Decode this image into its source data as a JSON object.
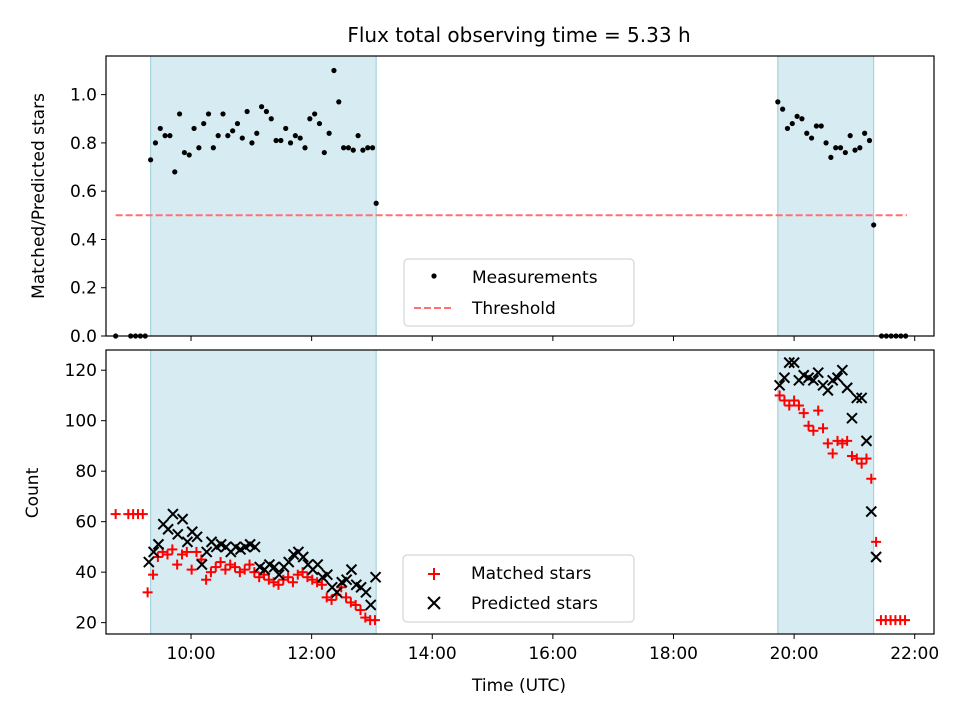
{
  "chart_data": [
    {
      "type": "scatter",
      "title": "Flux total observing time = 5.33 h",
      "ylabel": "Matched/Predicted stars",
      "xlim": [
        8.59,
        22.32
      ],
      "ylim": [
        0.0,
        1.16
      ],
      "ytick_labels": [
        "0.0",
        "0.2",
        "0.4",
        "0.6",
        "0.8",
        "1.0"
      ],
      "ytick_values": [
        0.0,
        0.2,
        0.4,
        0.6,
        0.8,
        1.0
      ],
      "shaded_intervals": [
        [
          9.33,
          13.07
        ],
        [
          19.73,
          21.32
        ]
      ],
      "threshold": {
        "name": "Threshold",
        "value": 0.5,
        "x_range": [
          8.75,
          21.87
        ],
        "color": "#ff7070"
      },
      "legend": {
        "placement": "lower center",
        "entries": [
          "Measurements",
          "Threshold"
        ]
      },
      "series": [
        {
          "name": "Measurements",
          "color": "#000000",
          "marker": "dot",
          "points": [
            [
              8.75,
              0.0
            ],
            [
              9.0,
              0.0
            ],
            [
              9.08,
              0.0
            ],
            [
              9.16,
              0.0
            ],
            [
              9.24,
              0.0
            ],
            [
              9.33,
              0.73
            ],
            [
              9.41,
              0.8
            ],
            [
              9.49,
              0.86
            ],
            [
              9.57,
              0.83
            ],
            [
              9.65,
              0.83
            ],
            [
              9.73,
              0.68
            ],
            [
              9.81,
              0.92
            ],
            [
              9.89,
              0.76
            ],
            [
              9.97,
              0.75
            ],
            [
              10.05,
              0.86
            ],
            [
              10.13,
              0.78
            ],
            [
              10.21,
              0.88
            ],
            [
              10.29,
              0.92
            ],
            [
              10.37,
              0.78
            ],
            [
              10.45,
              0.83
            ],
            [
              10.53,
              0.92
            ],
            [
              10.61,
              0.83
            ],
            [
              10.69,
              0.85
            ],
            [
              10.77,
              0.88
            ],
            [
              10.85,
              0.82
            ],
            [
              10.93,
              0.93
            ],
            [
              11.01,
              0.8
            ],
            [
              11.09,
              0.84
            ],
            [
              11.17,
              0.95
            ],
            [
              11.25,
              0.93
            ],
            [
              11.33,
              0.9
            ],
            [
              11.41,
              0.81
            ],
            [
              11.49,
              0.81
            ],
            [
              11.57,
              0.86
            ],
            [
              11.65,
              0.8
            ],
            [
              11.73,
              0.83
            ],
            [
              11.81,
              0.82
            ],
            [
              11.89,
              0.78
            ],
            [
              11.97,
              0.9
            ],
            [
              12.05,
              0.92
            ],
            [
              12.13,
              0.88
            ],
            [
              12.21,
              0.76
            ],
            [
              12.29,
              0.84
            ],
            [
              12.37,
              1.1
            ],
            [
              12.45,
              0.97
            ],
            [
              12.53,
              0.78
            ],
            [
              12.61,
              0.78
            ],
            [
              12.69,
              0.77
            ],
            [
              12.77,
              0.83
            ],
            [
              12.85,
              0.77
            ],
            [
              12.93,
              0.78
            ],
            [
              13.01,
              0.78
            ],
            [
              13.07,
              0.55
            ],
            [
              19.73,
              0.97
            ],
            [
              19.81,
              0.94
            ],
            [
              19.89,
              0.86
            ],
            [
              19.97,
              0.88
            ],
            [
              20.05,
              0.91
            ],
            [
              20.13,
              0.9
            ],
            [
              20.21,
              0.84
            ],
            [
              20.29,
              0.82
            ],
            [
              20.37,
              0.87
            ],
            [
              20.45,
              0.87
            ],
            [
              20.53,
              0.8
            ],
            [
              20.61,
              0.74
            ],
            [
              20.69,
              0.78
            ],
            [
              20.77,
              0.78
            ],
            [
              20.85,
              0.76
            ],
            [
              20.93,
              0.83
            ],
            [
              21.01,
              0.77
            ],
            [
              21.09,
              0.78
            ],
            [
              21.17,
              0.84
            ],
            [
              21.25,
              0.81
            ],
            [
              21.32,
              0.46
            ],
            [
              21.45,
              0.0
            ],
            [
              21.53,
              0.0
            ],
            [
              21.61,
              0.0
            ],
            [
              21.69,
              0.0
            ],
            [
              21.77,
              0.0
            ],
            [
              21.85,
              0.0
            ]
          ]
        }
      ]
    },
    {
      "type": "scatter",
      "xlabel": "Time (UTC)",
      "ylabel": "Count",
      "xlim": [
        8.59,
        22.32
      ],
      "ylim": [
        15.5,
        128
      ],
      "xtick_labels": [
        "10:00",
        "12:00",
        "14:00",
        "16:00",
        "18:00",
        "20:00",
        "22:00"
      ],
      "xtick_values": [
        10,
        12,
        14,
        16,
        18,
        20,
        22
      ],
      "ytick_labels": [
        "20",
        "40",
        "60",
        "80",
        "100",
        "120"
      ],
      "ytick_values": [
        20,
        40,
        60,
        80,
        100,
        120
      ],
      "shaded_intervals": [
        [
          9.33,
          13.07
        ],
        [
          19.73,
          21.32
        ]
      ],
      "legend": {
        "placement": "lower center",
        "entries": [
          "Matched stars",
          "Predicted stars"
        ]
      },
      "series": [
        {
          "name": "Matched stars",
          "color": "#ff0000",
          "marker": "plus",
          "points": [
            [
              8.75,
              63
            ],
            [
              8.96,
              63
            ],
            [
              9.04,
              63
            ],
            [
              9.12,
              63
            ],
            [
              9.2,
              63
            ],
            [
              9.28,
              32
            ],
            [
              9.37,
              39
            ],
            [
              9.45,
              46
            ],
            [
              9.53,
              48
            ],
            [
              9.61,
              47
            ],
            [
              9.69,
              49
            ],
            [
              9.77,
              43
            ],
            [
              9.85,
              47
            ],
            [
              9.93,
              48
            ],
            [
              10.01,
              41
            ],
            [
              10.09,
              48
            ],
            [
              10.17,
              45
            ],
            [
              10.25,
              37
            ],
            [
              10.33,
              40
            ],
            [
              10.41,
              42
            ],
            [
              10.49,
              44
            ],
            [
              10.57,
              41
            ],
            [
              10.65,
              43
            ],
            [
              10.73,
              42
            ],
            [
              10.81,
              40
            ],
            [
              10.89,
              41
            ],
            [
              10.97,
              43
            ],
            [
              11.05,
              40
            ],
            [
              11.13,
              38
            ],
            [
              11.21,
              39
            ],
            [
              11.29,
              37
            ],
            [
              11.37,
              36
            ],
            [
              11.45,
              35
            ],
            [
              11.53,
              37
            ],
            [
              11.61,
              38
            ],
            [
              11.69,
              36
            ],
            [
              11.77,
              39
            ],
            [
              11.85,
              40
            ],
            [
              11.93,
              38
            ],
            [
              12.01,
              37
            ],
            [
              12.09,
              36
            ],
            [
              12.17,
              35
            ],
            [
              12.25,
              30
            ],
            [
              12.33,
              29
            ],
            [
              12.41,
              31
            ],
            [
              12.49,
              34
            ],
            [
              12.57,
              30
            ],
            [
              12.65,
              28
            ],
            [
              12.73,
              27
            ],
            [
              12.81,
              25
            ],
            [
              12.89,
              22
            ],
            [
              12.97,
              21
            ],
            [
              13.05,
              21
            ],
            [
              19.76,
              110
            ],
            [
              19.84,
              108
            ],
            [
              19.92,
              106
            ],
            [
              20.0,
              108
            ],
            [
              20.08,
              106
            ],
            [
              20.16,
              103
            ],
            [
              20.24,
              98
            ],
            [
              20.32,
              96
            ],
            [
              20.4,
              104
            ],
            [
              20.48,
              97
            ],
            [
              20.56,
              91
            ],
            [
              20.64,
              87
            ],
            [
              20.72,
              92
            ],
            [
              20.8,
              91
            ],
            [
              20.88,
              92
            ],
            [
              20.96,
              86
            ],
            [
              21.04,
              85
            ],
            [
              21.12,
              83
            ],
            [
              21.2,
              85
            ],
            [
              21.28,
              77
            ],
            [
              21.36,
              52
            ],
            [
              21.44,
              21
            ],
            [
              21.52,
              21
            ],
            [
              21.6,
              21
            ],
            [
              21.68,
              21
            ],
            [
              21.76,
              21
            ],
            [
              21.84,
              21
            ]
          ]
        },
        {
          "name": "Predicted stars",
          "color": "#000000",
          "marker": "x",
          "points": [
            [
              9.3,
              44
            ],
            [
              9.38,
              48
            ],
            [
              9.46,
              51
            ],
            [
              9.54,
              59
            ],
            [
              9.62,
              57
            ],
            [
              9.7,
              63
            ],
            [
              9.78,
              55
            ],
            [
              9.86,
              61
            ],
            [
              9.94,
              52
            ],
            [
              10.02,
              56
            ],
            [
              10.1,
              54
            ],
            [
              10.18,
              43
            ],
            [
              10.26,
              48
            ],
            [
              10.34,
              52
            ],
            [
              10.42,
              50
            ],
            [
              10.5,
              51
            ],
            [
              10.58,
              50
            ],
            [
              10.66,
              48
            ],
            [
              10.74,
              50
            ],
            [
              10.82,
              49
            ],
            [
              10.9,
              50
            ],
            [
              10.98,
              51
            ],
            [
              11.06,
              50
            ],
            [
              11.14,
              42
            ],
            [
              11.22,
              41
            ],
            [
              11.3,
              43
            ],
            [
              11.38,
              42
            ],
            [
              11.46,
              39
            ],
            [
              11.54,
              42
            ],
            [
              11.62,
              44
            ],
            [
              11.7,
              47
            ],
            [
              11.78,
              48
            ],
            [
              11.86,
              46
            ],
            [
              11.94,
              43
            ],
            [
              12.02,
              41
            ],
            [
              12.1,
              43
            ],
            [
              12.18,
              38
            ],
            [
              12.26,
              39
            ],
            [
              12.34,
              34
            ],
            [
              12.42,
              32
            ],
            [
              12.5,
              36
            ],
            [
              12.58,
              37
            ],
            [
              12.66,
              41
            ],
            [
              12.74,
              35
            ],
            [
              12.82,
              34
            ],
            [
              12.9,
              32
            ],
            [
              12.98,
              27
            ],
            [
              13.06,
              38
            ],
            [
              19.76,
              114
            ],
            [
              19.84,
              117
            ],
            [
              19.92,
              123
            ],
            [
              20.0,
              123
            ],
            [
              20.08,
              116
            ],
            [
              20.16,
              118
            ],
            [
              20.24,
              117
            ],
            [
              20.32,
              116
            ],
            [
              20.4,
              119
            ],
            [
              20.48,
              114
            ],
            [
              20.56,
              112
            ],
            [
              20.64,
              116
            ],
            [
              20.72,
              117
            ],
            [
              20.8,
              120
            ],
            [
              20.88,
              113
            ],
            [
              20.96,
              101
            ],
            [
              21.04,
              109
            ],
            [
              21.12,
              109
            ],
            [
              21.2,
              92
            ],
            [
              21.28,
              64
            ],
            [
              21.36,
              46
            ]
          ]
        }
      ]
    }
  ]
}
